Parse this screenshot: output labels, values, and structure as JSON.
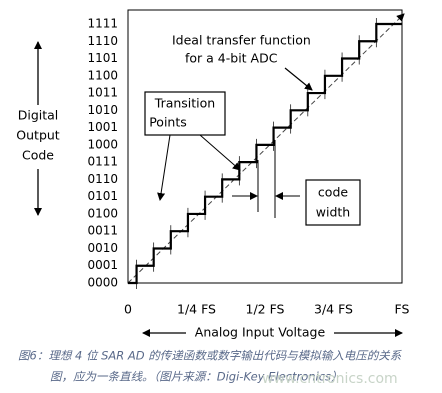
{
  "y_labels": [
    "0000",
    "0001",
    "0010",
    "0011",
    "0100",
    "0101",
    "0110",
    "0111",
    "1000",
    "1001",
    "1010",
    "1011",
    "1100",
    "1101",
    "1110",
    "1111"
  ],
  "x_labels": [
    "0",
    "1/4 FS",
    "1/2 FS",
    "3/4 FS",
    "FS"
  ],
  "y_axis_label": [
    "Digital",
    "Output",
    "Code"
  ],
  "x_axis_label": "Analog Input Voltage",
  "annotations": {
    "ideal": [
      "Ideal transfer function",
      "for a 4-bit ADC"
    ],
    "transition": [
      "Transition",
      "Points"
    ],
    "code_width": [
      "code",
      "width"
    ]
  },
  "caption": [
    "图6：理想 4 位 SAR AD 的传递函数或数字输出代码与模拟输入电压的关系",
    "图，应为一条直线。（图片来源：Digi-Key Electronics）"
  ],
  "watermark": "www.cntronics.com"
}
